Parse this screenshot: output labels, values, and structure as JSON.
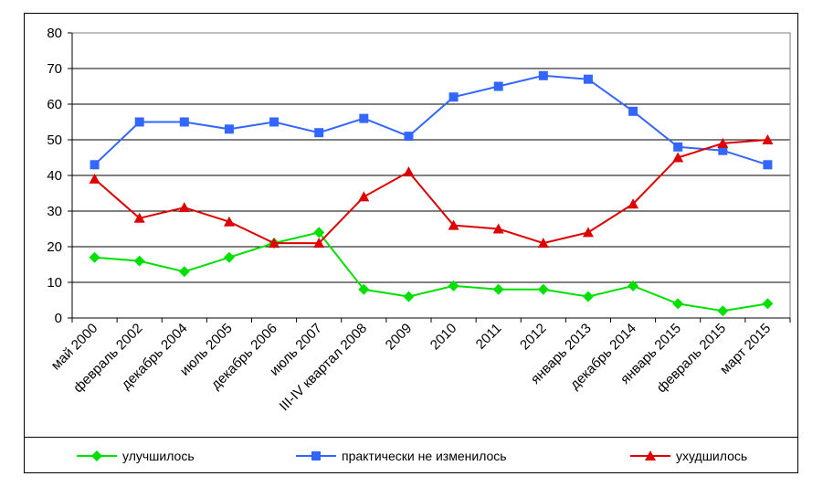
{
  "chart_data": {
    "type": "line",
    "title": "",
    "xlabel": "",
    "ylabel": "",
    "ylim": [
      0,
      80
    ],
    "yticks": [
      0,
      10,
      20,
      30,
      40,
      50,
      60,
      70,
      80
    ],
    "grid": "horizontal",
    "legend_position": "bottom",
    "categories": [
      "май 2000",
      "февраль 2002",
      "декабрь 2004",
      "июль 2005",
      "декабрь 2006",
      "июль 2007",
      "III-IV квартал 2008",
      "2009",
      "2010",
      "2011",
      "2012",
      "январь 2013",
      "декабрь 2014",
      "январь 2015",
      "февраль 2015",
      "март 2015"
    ],
    "series": [
      {
        "name": "улучшилось",
        "color": "#00e000",
        "marker": "diamond",
        "values": [
          17,
          16,
          13,
          17,
          21,
          24,
          8,
          6,
          9,
          8,
          8,
          6,
          9,
          4,
          2,
          4
        ]
      },
      {
        "name": "практически не изменилось",
        "color": "#3366ff",
        "marker": "square",
        "values": [
          43,
          55,
          55,
          53,
          55,
          52,
          56,
          51,
          62,
          65,
          68,
          67,
          58,
          48,
          47,
          43
        ]
      },
      {
        "name": "ухудшилось",
        "color": "#dd0000",
        "marker": "triangle",
        "values": [
          39,
          28,
          31,
          27,
          21,
          21,
          34,
          41,
          26,
          25,
          21,
          24,
          32,
          45,
          49,
          50
        ]
      }
    ]
  }
}
